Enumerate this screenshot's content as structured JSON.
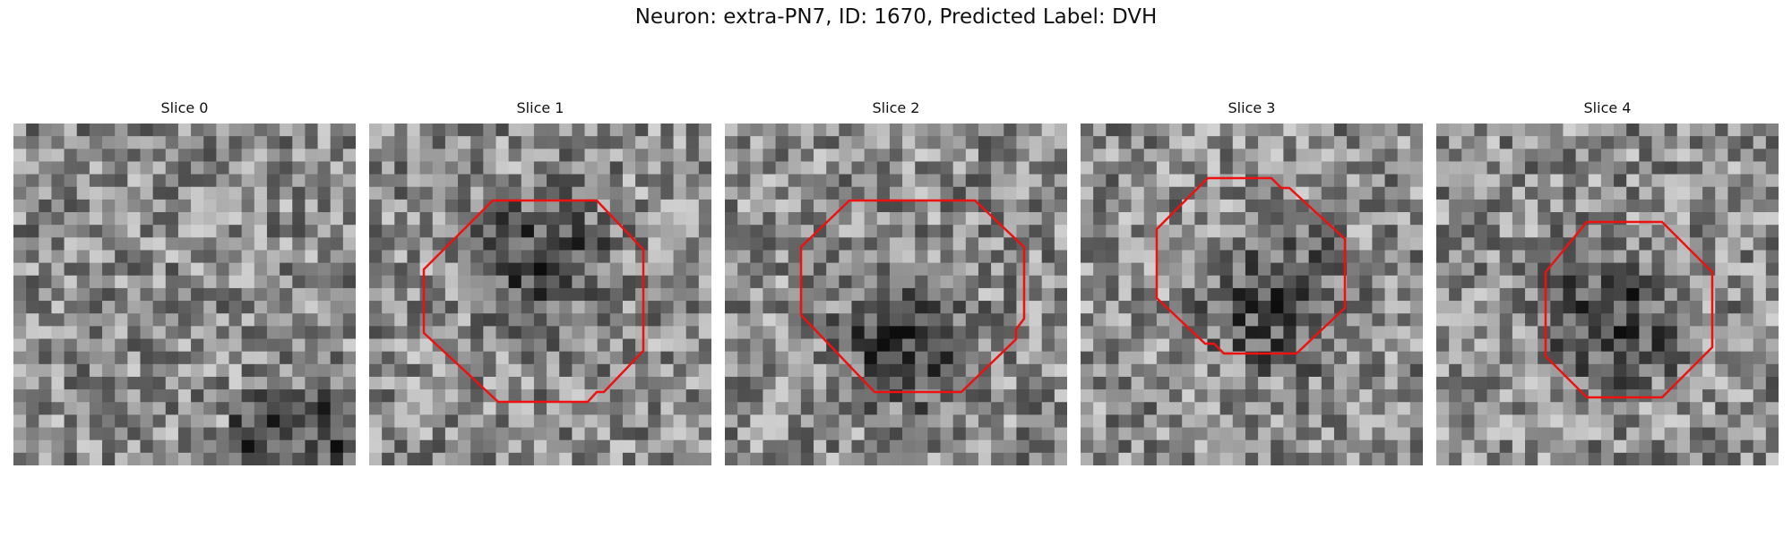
{
  "figure": {
    "title": "Neuron: extra-PN7, ID: 1670, Predicted Label: DVH"
  },
  "panels": [
    {
      "title": "Slice 0",
      "seed": 11,
      "dark_center": null,
      "contour": null
    },
    {
      "title": "Slice 1",
      "seed": 23,
      "dark_center": [
        0.48,
        0.38
      ]
    },
    {
      "title": "Slice 2",
      "seed": 37,
      "dark_center": [
        0.5,
        0.62
      ]
    },
    {
      "title": "Slice 3",
      "seed": 41,
      "dark_center": [
        0.55,
        0.5
      ]
    },
    {
      "title": "Slice 4",
      "seed": 59,
      "dark_center": [
        0.5,
        0.55
      ]
    }
  ],
  "colors": {
    "contour": "#ee1111"
  }
}
